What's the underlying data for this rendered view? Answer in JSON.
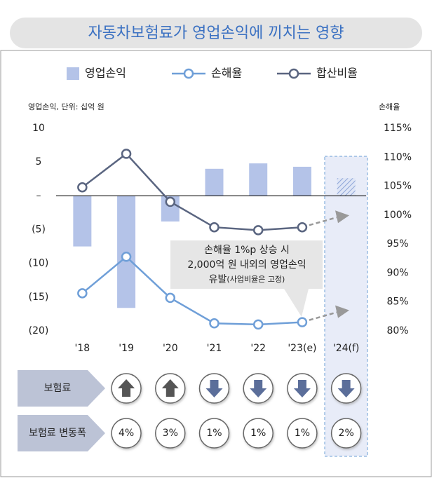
{
  "chart_data": {
    "type": "bar-line",
    "title": "자동차보험료가 영업손익에 끼치는 영향",
    "y_label": "영업손익, 단위: 십억 원",
    "y2_label": "손해율",
    "categories": [
      "'18",
      "'19",
      "'20",
      "'21",
      "'22",
      "'23(e)",
      "'24(f)"
    ],
    "series": [
      {
        "name": "영업손익",
        "type": "bar",
        "color": "#b4c3e8",
        "values": [
          -7.5,
          -16.6,
          -3.8,
          4.0,
          4.8,
          4.3,
          2.6
        ]
      },
      {
        "name": "손해율",
        "type": "line",
        "axis": "y2",
        "color": "#6f9fd8",
        "values": [
          86.5,
          92.8,
          85.7,
          81.3,
          81.1,
          81.5,
          null
        ]
      },
      {
        "name": "합산비율",
        "type": "line",
        "axis": "y2",
        "color": "#5a6580",
        "values": [
          104.8,
          110.6,
          102.3,
          97.9,
          97.4,
          97.9,
          null
        ]
      }
    ],
    "ylim": [
      -20,
      10
    ],
    "yticks": [
      10,
      5,
      {
        "value": 0,
        "label": "–"
      },
      {
        "value": -5,
        "label": "(5)"
      },
      {
        "value": -10,
        "label": "(10)"
      },
      {
        "value": -15,
        "label": "(15)"
      },
      {
        "value": -20,
        "label": "(20)"
      }
    ],
    "y2lim": [
      80,
      115
    ],
    "y2ticks": [
      {
        "value": 115,
        "label": "115%"
      },
      {
        "value": 110,
        "label": "110%"
      },
      {
        "value": 105,
        "label": "105%"
      },
      {
        "value": 100,
        "label": "100%"
      },
      {
        "value": 95,
        "label": "95%"
      },
      {
        "value": 90,
        "label": "90%"
      },
      {
        "value": 85,
        "label": "85%"
      },
      {
        "value": 80,
        "label": "80%"
      }
    ],
    "annotation": [
      "손해율 1%p 상승 시",
      "2,000억 원 내외의 영업손익",
      "유발",
      "(사업비율은 고정)"
    ]
  },
  "premium_table": {
    "row_labels": [
      "보험료",
      "보험료 변동폭"
    ],
    "directions": [
      "up",
      "up",
      "down",
      "down",
      "down",
      "down"
    ],
    "changes": [
      "4%",
      "3%",
      "1%",
      "1%",
      "1%",
      "2%"
    ]
  }
}
